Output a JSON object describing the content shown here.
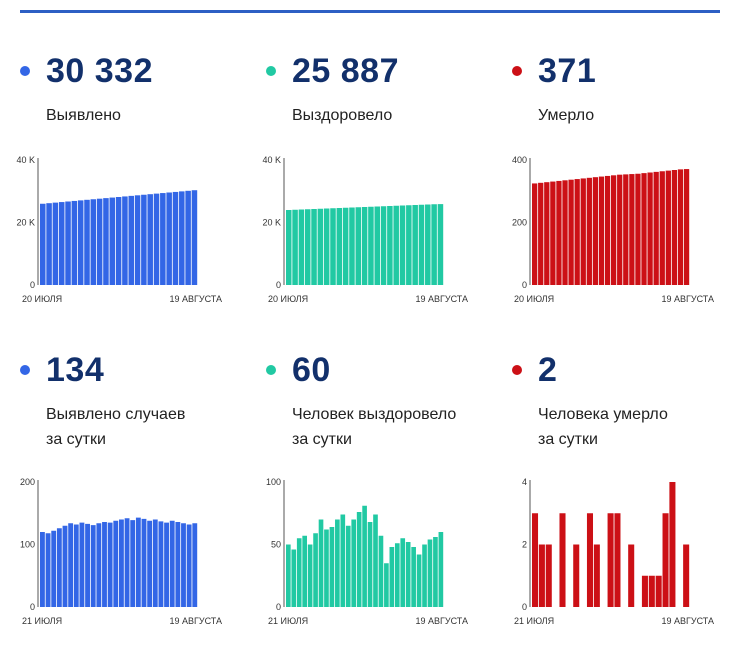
{
  "colors": {
    "blue": "#3366e6",
    "green": "#21c9a3",
    "red": "#cc1016",
    "value_text": "#12306b"
  },
  "cards": [
    {
      "value": "30 332",
      "label_lines": [
        "Выявлено"
      ],
      "color": "blue"
    },
    {
      "value": "25 887",
      "label_lines": [
        "Выздоровело"
      ],
      "color": "green"
    },
    {
      "value": "371",
      "label_lines": [
        "Умерло"
      ],
      "color": "red"
    },
    {
      "value": "134",
      "label_lines": [
        "Выявлено случаев",
        "за сутки"
      ],
      "color": "blue"
    },
    {
      "value": "60",
      "label_lines": [
        "Человек выздоровело",
        "за сутки"
      ],
      "color": "green"
    },
    {
      "value": "2",
      "label_lines": [
        "Человека умерло",
        "за сутки"
      ],
      "color": "red"
    }
  ],
  "chart_data": [
    {
      "type": "bar",
      "title": "Выявлено",
      "color": "blue",
      "yticks": [
        0,
        20000,
        40000
      ],
      "ytick_labels": [
        "0",
        "20 K",
        "40 K"
      ],
      "ylim": [
        0,
        40000
      ],
      "xtick_labels": [
        "20 ИЮЛЯ",
        "19 АВГУСТА"
      ],
      "values": [
        26000,
        26180,
        26360,
        26540,
        26720,
        26900,
        27080,
        27260,
        27440,
        27620,
        27800,
        27980,
        28160,
        28340,
        28520,
        28700,
        28880,
        29060,
        29240,
        29420,
        29600,
        29780,
        29960,
        30140,
        30332
      ]
    },
    {
      "type": "bar",
      "title": "Выздоровело",
      "color": "green",
      "yticks": [
        0,
        20000,
        40000
      ],
      "ytick_labels": [
        "0",
        "20 K",
        "40 K"
      ],
      "ylim": [
        0,
        40000
      ],
      "xtick_labels": [
        "20 ИЮЛЯ",
        "19 АВГУСТА"
      ],
      "values": [
        24000,
        24080,
        24160,
        24240,
        24320,
        24400,
        24480,
        24560,
        24640,
        24720,
        24800,
        24880,
        24960,
        25040,
        25120,
        25200,
        25280,
        25360,
        25440,
        25520,
        25600,
        25680,
        25760,
        25840,
        25887
      ]
    },
    {
      "type": "bar",
      "title": "Умерло",
      "color": "red",
      "yticks": [
        0,
        200,
        400
      ],
      "ytick_labels": [
        "0",
        "200",
        "400"
      ],
      "ylim": [
        0,
        400
      ],
      "xtick_labels": [
        "20 ИЮЛЯ",
        "19 АВГУСТА"
      ],
      "values": [
        325,
        327,
        329,
        331,
        333,
        335,
        337,
        339,
        341,
        343,
        345,
        347,
        349,
        351,
        353,
        354,
        355,
        356,
        358,
        360,
        362,
        364,
        366,
        368,
        370,
        371
      ]
    },
    {
      "type": "bar",
      "title": "Выявлено случаев за сутки",
      "color": "blue",
      "yticks": [
        0,
        100,
        200
      ],
      "ytick_labels": [
        "0",
        "100",
        "200"
      ],
      "ylim": [
        0,
        200
      ],
      "xtick_labels": [
        "21 ИЮЛЯ",
        "19 АВГУСТА"
      ],
      "values": [
        120,
        118,
        122,
        126,
        130,
        134,
        132,
        135,
        133,
        131,
        134,
        136,
        135,
        138,
        140,
        142,
        139,
        143,
        141,
        138,
        140,
        137,
        135,
        138,
        136,
        134,
        132,
        134
      ]
    },
    {
      "type": "bar",
      "title": "Человек выздоровело за сутки",
      "color": "green",
      "yticks": [
        0,
        50,
        100
      ],
      "ytick_labels": [
        "0",
        "50",
        "100"
      ],
      "ylim": [
        0,
        100
      ],
      "xtick_labels": [
        "21 ИЮЛЯ",
        "19 АВГУСТА"
      ],
      "values": [
        50,
        46,
        55,
        57,
        50,
        59,
        70,
        62,
        64,
        70,
        74,
        65,
        70,
        76,
        81,
        68,
        74,
        57,
        35,
        48,
        51,
        55,
        52,
        48,
        42,
        50,
        54,
        56,
        60
      ]
    },
    {
      "type": "bar",
      "title": "Человека умерло за сутки",
      "color": "red",
      "yticks": [
        0,
        2,
        4
      ],
      "ytick_labels": [
        "0",
        "2",
        "4"
      ],
      "ylim": [
        0,
        4
      ],
      "xtick_labels": [
        "21 ИЮЛЯ",
        "19 АВГУСТА"
      ],
      "values": [
        3,
        2,
        2,
        0,
        3,
        0,
        2,
        0,
        3,
        2,
        0,
        3,
        3,
        0,
        2,
        0,
        1,
        1,
        1,
        3,
        4,
        0,
        2
      ]
    }
  ]
}
